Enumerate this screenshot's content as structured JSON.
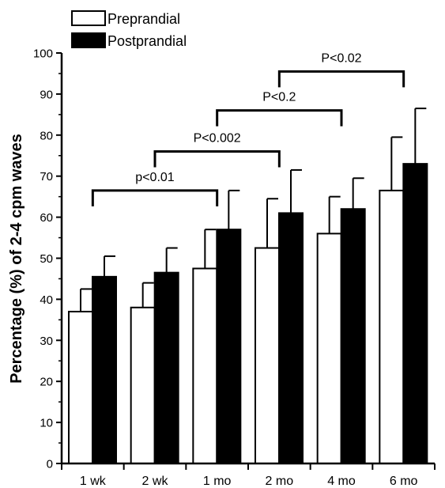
{
  "chart_data": {
    "type": "bar",
    "title": "",
    "xlabel": "",
    "ylabel": "Percentage (%) of 2-4 cpm waves",
    "ylim": [
      0,
      100
    ],
    "yticks": [
      0,
      10,
      20,
      30,
      40,
      50,
      60,
      70,
      80,
      90,
      100
    ],
    "grid": false,
    "legend_position": "top-left",
    "categories": [
      "1 wk",
      "2 wk",
      "1 mo",
      "2 mo",
      "4 mo",
      "6 mo"
    ],
    "series": [
      {
        "name": "Preprandial",
        "color": "#ffffff",
        "values": [
          37,
          38,
          47.5,
          52.5,
          56,
          66.5
        ],
        "error": [
          5.5,
          6,
          9.5,
          12,
          9,
          13
        ]
      },
      {
        "name": "Postprandial",
        "color": "#000000",
        "values": [
          45.5,
          46.5,
          57,
          61,
          62,
          73
        ],
        "error": [
          5,
          6,
          9.5,
          10.5,
          7.5,
          13.5
        ]
      }
    ],
    "annotations": [
      {
        "text": "p<0.01",
        "from": "1 wk",
        "to": "1 mo",
        "level": 66.5
      },
      {
        "text": "P<0.002",
        "from": "2 wk",
        "to": "2 mo",
        "level": 76
      },
      {
        "text": "P<0.2",
        "from": "1 mo",
        "to": "4 mo",
        "level": 86
      },
      {
        "text": "P<0.02",
        "from": "2 mo",
        "to": "6 mo",
        "level": 95.5
      }
    ]
  }
}
